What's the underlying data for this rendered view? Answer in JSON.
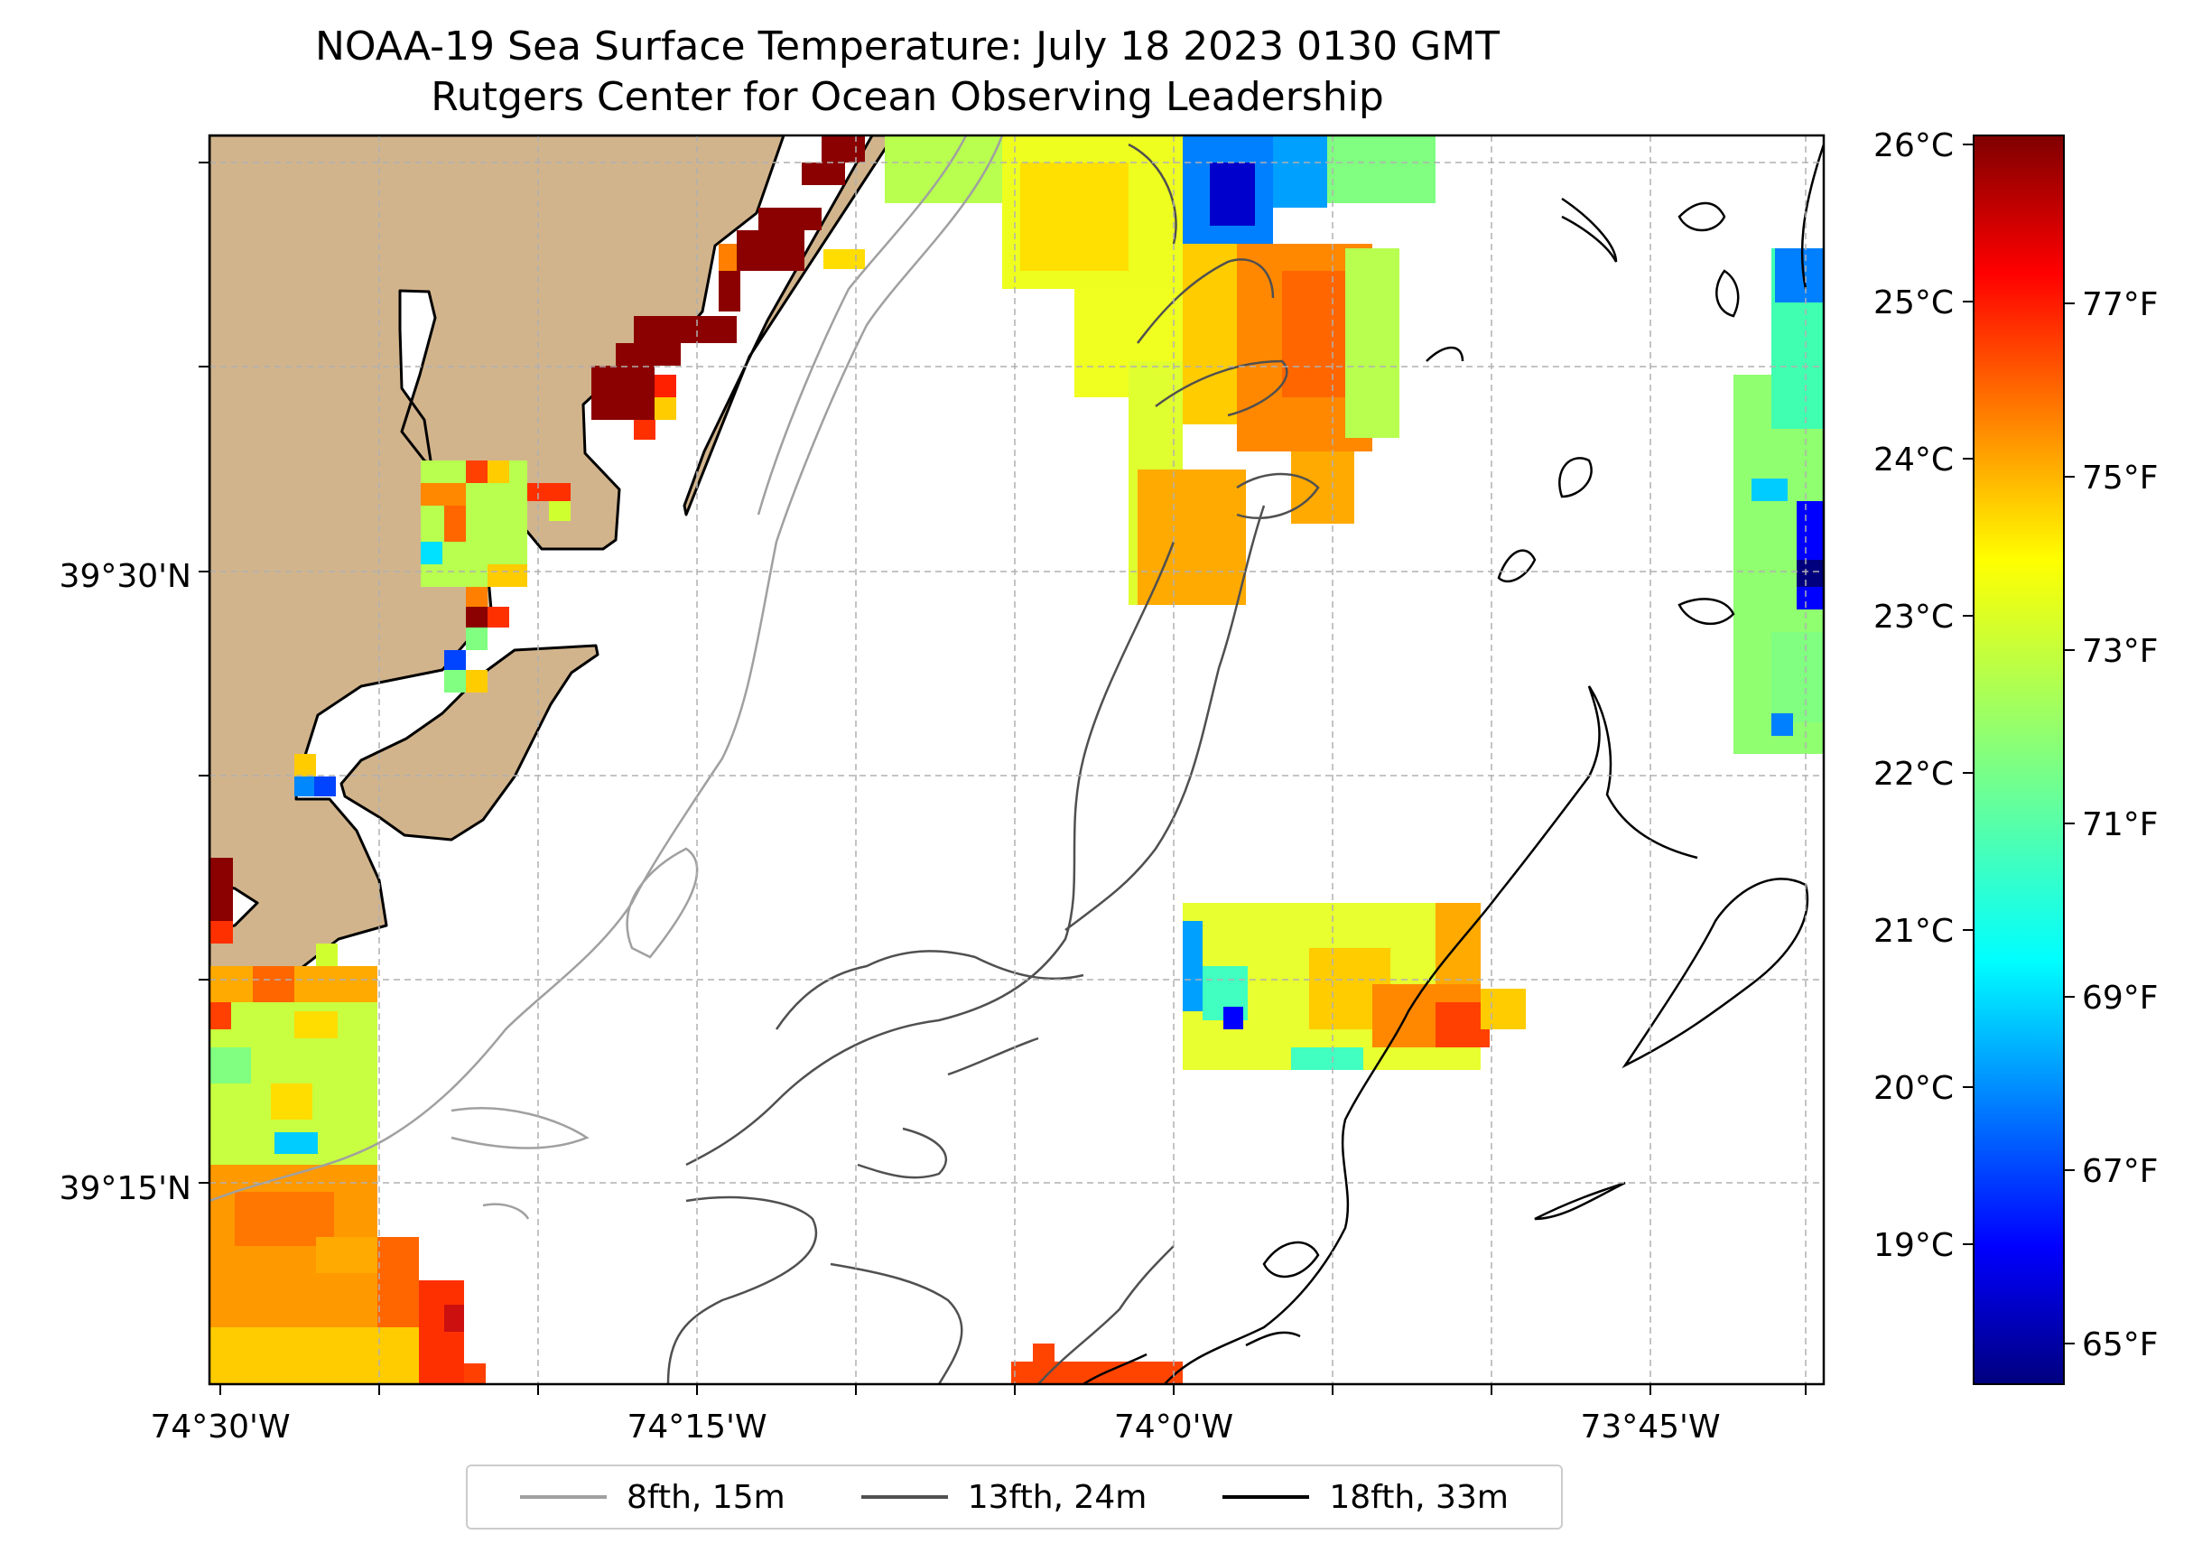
{
  "title": {
    "line1": "NOAA-19 Sea Surface Temperature: July 18 2023 0130 GMT",
    "line2": "Rutgers Center for Ocean Observing Leadership"
  },
  "map": {
    "longitude_labels": [
      "74°30'W",
      "74°15'W",
      "74°0'W",
      "73°45'W"
    ],
    "latitude_labels": [
      "39°30'N",
      "39°15'N"
    ],
    "land_color": "#d2b48c",
    "grid_color": "#b0b0b0"
  },
  "colorbar": {
    "celsius_labels": [
      "26°C",
      "25°C",
      "24°C",
      "23°C",
      "22°C",
      "21°C",
      "20°C",
      "19°C"
    ],
    "fahrenheit_labels": [
      "77°F",
      "75°F",
      "73°F",
      "71°F",
      "69°F",
      "67°F",
      "65°F"
    ],
    "colormap": "jet",
    "colors": [
      "#7f0000",
      "#ff0000",
      "#ff8000",
      "#ffff00",
      "#80ff80",
      "#00ffff",
      "#0080ff",
      "#0000ff",
      "#00007f"
    ]
  },
  "legend": {
    "entries": [
      {
        "label": "8fth, 15m",
        "color": "#a0a0a0"
      },
      {
        "label": "13fth, 24m",
        "color": "#505050"
      },
      {
        "label": "18fth, 33m",
        "color": "#000000"
      }
    ]
  }
}
